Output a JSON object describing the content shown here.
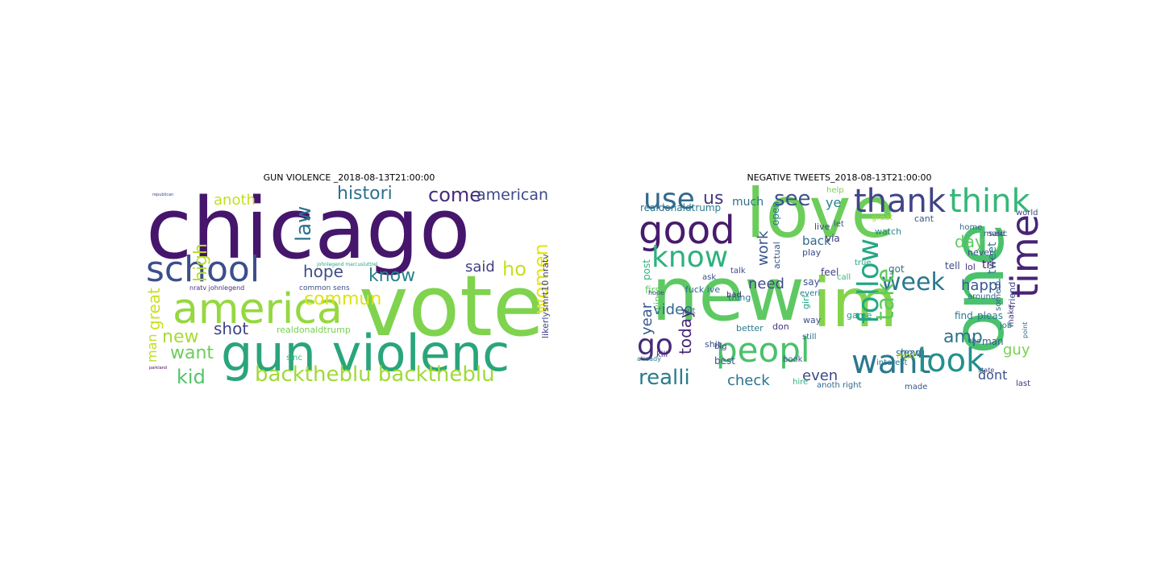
{
  "figure": {
    "panels": [
      {
        "title": "GUN VIOLENCE _2018-08-13T21:00:00",
        "words": [
          {
            "text": "chicago",
            "color": "#45166c"
          },
          {
            "text": "vote",
            "color": "#7fd34e"
          },
          {
            "text": "gun violenc",
            "color": "#2aa57a"
          },
          {
            "text": "america",
            "color": "#95d840"
          },
          {
            "text": "school",
            "color": "#3b4f8a"
          },
          {
            "text": "backtheblu backtheblu",
            "color": "#a0da39"
          },
          {
            "text": "histori",
            "color": "#2d718e"
          },
          {
            "text": "come",
            "color": "#472d7b"
          },
          {
            "text": "american",
            "color": "#3e4a89"
          },
          {
            "text": "law",
            "color": "#2c738e"
          },
          {
            "text": "anoth",
            "color": "#c2df23"
          },
          {
            "text": "high",
            "color": "#b8de29"
          },
          {
            "text": "hope",
            "color": "#3d4d8a"
          },
          {
            "text": "know",
            "color": "#26828e"
          },
          {
            "text": "commun",
            "color": "#dde318"
          },
          {
            "text": "ho",
            "color": "#c8e020"
          },
          {
            "text": "women",
            "color": "#e5e419"
          },
          {
            "text": "said",
            "color": "#433e85"
          },
          {
            "text": "great",
            "color": "#cae11f"
          },
          {
            "text": "new",
            "color": "#a8db34"
          },
          {
            "text": "shot",
            "color": "#404387"
          },
          {
            "text": "want",
            "color": "#6ccd5a"
          },
          {
            "text": "man",
            "color": "#bddf26"
          },
          {
            "text": "kid",
            "color": "#52c569"
          },
          {
            "text": "realdonaldtrump",
            "color": "#77d153"
          },
          {
            "text": "likerlysmrt10 nratv",
            "color": "#414487"
          },
          {
            "text": "nratv johnlegend",
            "color": "#46327e"
          },
          {
            "text": "common sens",
            "color": "#3b528b"
          },
          {
            "text": "sinc",
            "color": "#38b977"
          },
          {
            "text": "johnlegend marcusluttrel",
            "color": "#22a785"
          },
          {
            "text": "republican",
            "color": "#3e4a89"
          },
          {
            "text": "parkland",
            "color": "#440154"
          }
        ]
      },
      {
        "title": "NEGATIVE TWEETS_2018-08-13T21:00:00",
        "words": [
          {
            "text": "love",
            "color": "#6ccd5a"
          },
          {
            "text": "new",
            "color": "#5ec962"
          },
          {
            "text": "im",
            "color": "#84d44b"
          },
          {
            "text": "one",
            "color": "#4ac16d"
          },
          {
            "text": "good",
            "color": "#481b6d"
          },
          {
            "text": "thank",
            "color": "#414487"
          },
          {
            "text": "think",
            "color": "#35b779"
          },
          {
            "text": "use",
            "color": "#31688e"
          },
          {
            "text": "us",
            "color": "#453781"
          },
          {
            "text": "see",
            "color": "#3b528b"
          },
          {
            "text": "know",
            "color": "#2db27d"
          },
          {
            "text": "peopl",
            "color": "#4ac16d"
          },
          {
            "text": "time",
            "color": "#482475"
          },
          {
            "text": "week",
            "color": "#2a788e"
          },
          {
            "text": "want",
            "color": "#2a788e"
          },
          {
            "text": "look",
            "color": "#21918c"
          },
          {
            "text": "go",
            "color": "#472a7a"
          },
          {
            "text": "realli",
            "color": "#287c8e"
          },
          {
            "text": "follow",
            "color": "#22a884"
          },
          {
            "text": "take",
            "color": "#5ec962"
          },
          {
            "text": "check",
            "color": "#2c728e"
          },
          {
            "text": "even",
            "color": "#3e4989"
          },
          {
            "text": "video",
            "color": "#31688e"
          },
          {
            "text": "much",
            "color": "#2c728e"
          },
          {
            "text": "work",
            "color": "#39568c"
          },
          {
            "text": "need",
            "color": "#3e4989"
          },
          {
            "text": "day",
            "color": "#5ec962"
          },
          {
            "text": "amp",
            "color": "#2c728e"
          },
          {
            "text": "happi",
            "color": "#38598c"
          },
          {
            "text": "year",
            "color": "#38598c"
          },
          {
            "text": "today",
            "color": "#482878"
          },
          {
            "text": "guy",
            "color": "#7ad151"
          },
          {
            "text": "dont",
            "color": "#3b528b"
          },
          {
            "text": "realdonaldtrump",
            "color": "#2a788e"
          },
          {
            "text": "back",
            "color": "#31688e"
          },
          {
            "text": "ye",
            "color": "#26828e"
          },
          {
            "text": "via",
            "color": "#443a83"
          },
          {
            "text": "great",
            "color": "#a5db36"
          },
          {
            "text": "watch",
            "color": "#26828e"
          },
          {
            "text": "cant",
            "color": "#39568c"
          },
          {
            "text": "tweet",
            "color": "#2a788e"
          },
          {
            "text": "tri",
            "color": "#48186a"
          },
          {
            "text": "tell",
            "color": "#3f4788"
          },
          {
            "text": "lol",
            "color": "#46327e"
          },
          {
            "text": "never",
            "color": "#3b528b"
          },
          {
            "text": "said",
            "color": "#433e85"
          },
          {
            "text": "home",
            "color": "#31688e"
          },
          {
            "text": "show",
            "color": "#2a788e"
          },
          {
            "text": "read",
            "color": "#31688e"
          },
          {
            "text": "next",
            "color": "#b5de2b"
          },
          {
            "text": "find",
            "color": "#2a788e"
          },
          {
            "text": "pleas",
            "color": "#287c8e"
          },
          {
            "text": "man",
            "color": "#355f8d"
          },
          {
            "text": "feel",
            "color": "#433e85"
          },
          {
            "text": "say",
            "color": "#3b528b"
          },
          {
            "text": "got",
            "color": "#2c728e"
          },
          {
            "text": "first",
            "color": "#5ec962"
          },
          {
            "text": "fuck ive",
            "color": "#31688e"
          },
          {
            "text": "better",
            "color": "#2a788e"
          },
          {
            "text": "best",
            "color": "#39568c"
          },
          {
            "text": "shit",
            "color": "#3b528b"
          },
          {
            "text": "big",
            "color": "#443983"
          },
          {
            "text": "bad",
            "color": "#482475"
          },
          {
            "text": "thing",
            "color": "#2a788e"
          },
          {
            "text": "play",
            "color": "#3e4989"
          },
          {
            "text": "game",
            "color": "#1f988b"
          },
          {
            "text": "way",
            "color": "#3b528b"
          },
          {
            "text": "hire",
            "color": "#2db27d"
          },
          {
            "text": "made",
            "color": "#39568c"
          },
          {
            "text": "anoth right",
            "color": "#31688e"
          },
          {
            "text": "interest",
            "color": "#2a788e"
          },
          {
            "text": "last",
            "color": "#46327e"
          },
          {
            "text": "make",
            "color": "#443983"
          },
          {
            "text": "friend",
            "color": "#414487"
          },
          {
            "text": "someth",
            "color": "#355f8d"
          },
          {
            "text": "point",
            "color": "#31688e"
          },
          {
            "text": "true",
            "color": "#22a884"
          },
          {
            "text": "help",
            "color": "#7ad151"
          },
          {
            "text": "live",
            "color": "#414487"
          },
          {
            "text": "let",
            "color": "#3b528b"
          },
          {
            "text": "music",
            "color": "#355f8d"
          },
          {
            "text": "world",
            "color": "#3e4989"
          },
          {
            "text": "around",
            "color": "#31688e"
          },
          {
            "text": "job",
            "color": "#2a788e"
          },
          {
            "text": "kill",
            "color": "#482878"
          },
          {
            "text": "hope",
            "color": "#3e4989"
          },
          {
            "text": "post",
            "color": "#2db27d"
          },
          {
            "text": "win",
            "color": "#5ec962"
          },
          {
            "text": "ask",
            "color": "#3b528b"
          },
          {
            "text": "put",
            "color": "#31688e"
          },
          {
            "text": "talk",
            "color": "#3e4989"
          },
          {
            "text": "actual",
            "color": "#39568c"
          },
          {
            "text": "everi",
            "color": "#2a788e"
          },
          {
            "text": "don",
            "color": "#46327e"
          },
          {
            "text": "girl",
            "color": "#22a884"
          },
          {
            "text": "book",
            "color": "#3b528b"
          },
          {
            "text": "still",
            "color": "#31688e"
          },
          {
            "text": "call",
            "color": "#35b779"
          },
          {
            "text": "open",
            "color": "#2a788e"
          },
          {
            "text": "already",
            "color": "#2a788e"
          },
          {
            "text": "tho",
            "color": "#31688e"
          },
          {
            "text": "state",
            "color": "#3e4989"
          }
        ]
      }
    ]
  }
}
